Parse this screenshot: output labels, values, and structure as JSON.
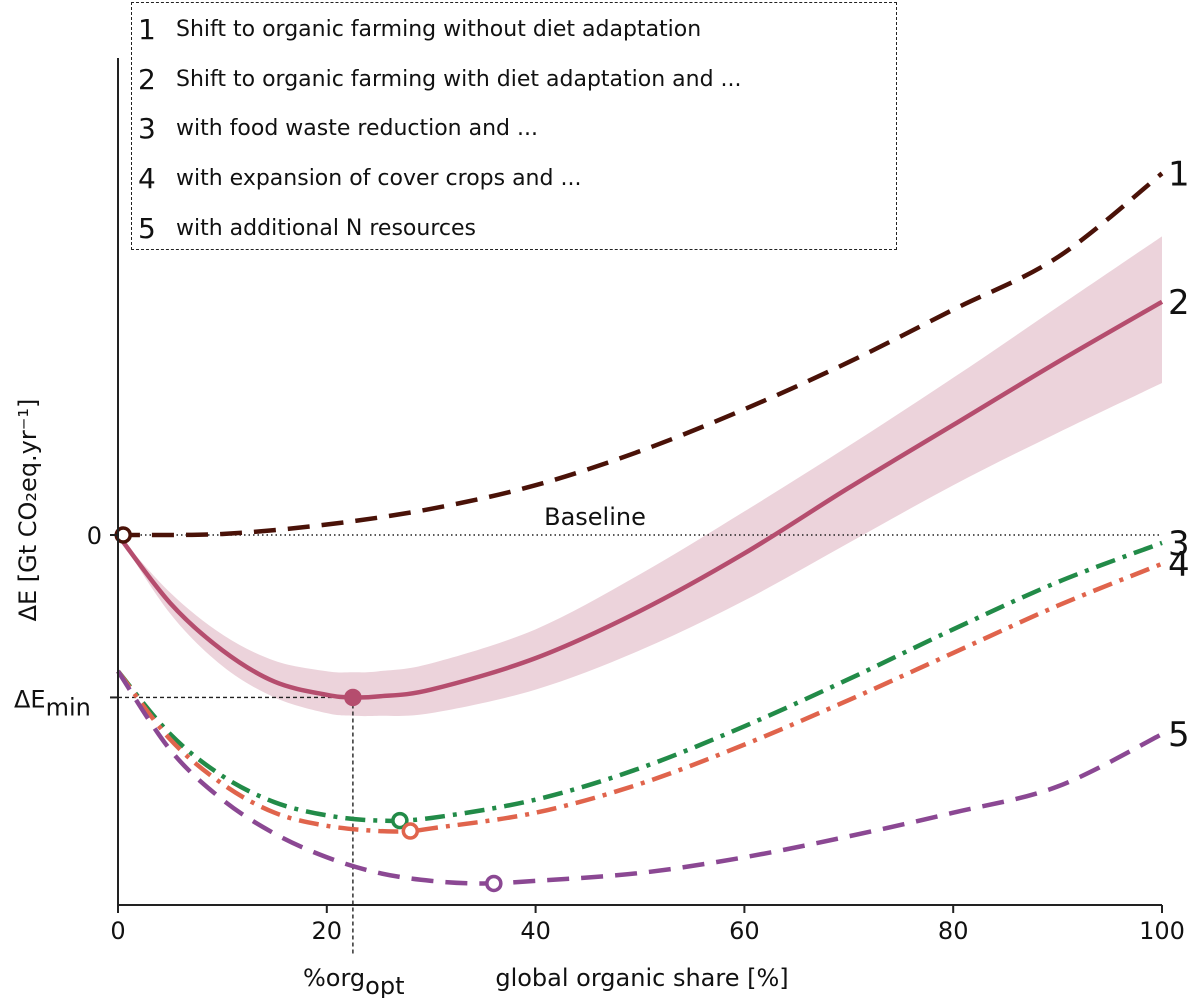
{
  "legend": {
    "items": [
      {
        "num": "1",
        "text": "Shift to organic farming without diet adaptation"
      },
      {
        "num": "2",
        "text": "Shift to organic farming with diet adaptation and ..."
      },
      {
        "num": "3",
        "text": "with food waste reduction and  ..."
      },
      {
        "num": "4",
        "text": "with expansion of cover crops and ..."
      },
      {
        "num": "5",
        "text": "with additional N resources"
      }
    ]
  },
  "chart_data": {
    "type": "line",
    "xlabel": "global organic share [%]",
    "ylabel": "ΔE [Gt CO₂eq.yr⁻¹]",
    "xlim": [
      0,
      100
    ],
    "ylim": [
      -7,
      7
    ],
    "x_ticks": [
      "0",
      "20",
      "40",
      "60",
      "80",
      "100"
    ],
    "y_tick_zero": "0",
    "y_tick_min_label": "ΔE",
    "y_tick_min_sub": "min",
    "x_marker_label": "%org",
    "x_marker_sub": "opt",
    "baseline_label": "Baseline",
    "e_min": -3.1,
    "org_opt": 22.5,
    "series": [
      {
        "label": "1",
        "color": "#4a1208",
        "style": "dashed",
        "x": [
          0,
          10,
          20,
          30,
          40,
          50,
          60,
          70,
          80,
          90,
          100
        ],
        "y": [
          0,
          0.02,
          0.2,
          0.5,
          0.95,
          1.6,
          2.4,
          3.3,
          4.3,
          5.3,
          6.9
        ]
      },
      {
        "label": "2",
        "color": "#b54d6e",
        "style": "solid",
        "x": [
          0,
          5,
          10,
          15,
          20,
          22.5,
          25,
          30,
          40,
          50,
          60,
          70,
          80,
          90,
          100
        ],
        "y": [
          0,
          -1.3,
          -2.2,
          -2.8,
          -3.05,
          -3.1,
          -3.08,
          -2.95,
          -2.35,
          -1.45,
          -0.35,
          0.9,
          2.1,
          3.3,
          4.45
        ],
        "band_upper": [
          0,
          -1.1,
          -1.9,
          -2.4,
          -2.6,
          -2.62,
          -2.6,
          -2.45,
          -1.8,
          -0.75,
          0.45,
          1.7,
          3.0,
          4.35,
          5.7
        ],
        "band_lower": [
          0,
          -1.5,
          -2.5,
          -3.1,
          -3.4,
          -3.45,
          -3.45,
          -3.4,
          -2.95,
          -2.2,
          -1.25,
          -0.15,
          0.95,
          1.95,
          2.9
        ]
      },
      {
        "label": "3",
        "color": "#228b48",
        "style": "dashdot",
        "x": [
          0,
          5,
          10,
          15,
          20,
          25,
          30,
          40,
          50,
          60,
          70,
          80,
          90,
          100
        ],
        "y": [
          -2.6,
          -3.8,
          -4.6,
          -5.1,
          -5.35,
          -5.45,
          -5.4,
          -5.05,
          -4.45,
          -3.65,
          -2.75,
          -1.8,
          -0.9,
          -0.15
        ]
      },
      {
        "label": "4",
        "color": "#e0644c",
        "style": "dashdot",
        "x": [
          0,
          5,
          10,
          15,
          20,
          25,
          28,
          30,
          40,
          50,
          60,
          70,
          80,
          90,
          100
        ],
        "y": [
          -2.6,
          -3.9,
          -4.75,
          -5.3,
          -5.55,
          -5.65,
          -5.65,
          -5.6,
          -5.3,
          -4.75,
          -4.0,
          -3.15,
          -2.25,
          -1.35,
          -0.55
        ]
      },
      {
        "label": "5",
        "color": "#8b4893",
        "style": "dashed",
        "x": [
          0,
          5,
          10,
          15,
          20,
          25,
          30,
          35,
          40,
          50,
          60,
          70,
          80,
          90,
          100
        ],
        "y": [
          -2.6,
          -4.1,
          -5.05,
          -5.7,
          -6.15,
          -6.45,
          -6.6,
          -6.65,
          -6.6,
          -6.45,
          -6.15,
          -5.75,
          -5.3,
          -4.8,
          -3.8
        ]
      }
    ],
    "minima": [
      {
        "series": "1",
        "x": 0.5,
        "y": 0,
        "filled": false
      },
      {
        "series": "2",
        "x": 22.5,
        "y": -3.1,
        "filled": true
      },
      {
        "series": "3",
        "x": 27,
        "y": -5.45,
        "filled": false
      },
      {
        "series": "4",
        "x": 28,
        "y": -5.65,
        "filled": false
      },
      {
        "series": "5",
        "x": 36,
        "y": -6.65,
        "filled": false
      }
    ]
  }
}
